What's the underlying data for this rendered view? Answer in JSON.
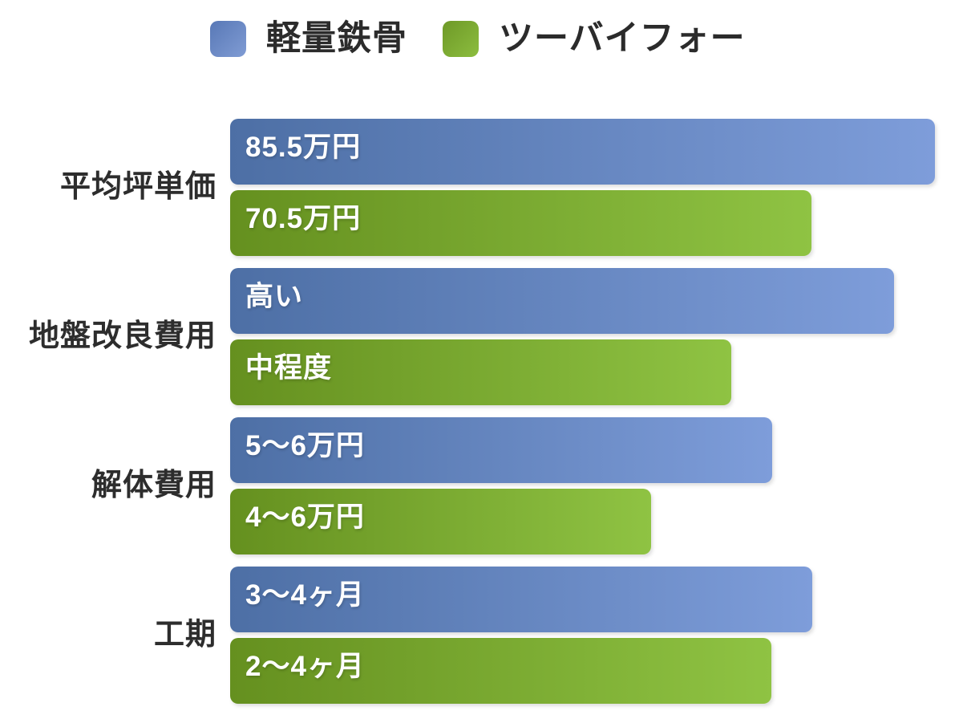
{
  "legend": {
    "items": [
      {
        "label": "軽量鉄骨",
        "color": "#6a8cc8",
        "gradient": [
          "#5878b6",
          "#809cd4"
        ]
      },
      {
        "label": "ツーバイフォー",
        "color": "#7fa936",
        "gradient": [
          "#6e9927",
          "#8cbd3f"
        ]
      }
    ]
  },
  "chart_data": {
    "type": "bar",
    "orientation": "horizontal",
    "title": "",
    "xlabel": "",
    "ylabel": "",
    "legend_position": "top",
    "grid": false,
    "categories": [
      "平均坪単価",
      "地盤改良費用",
      "解体費用",
      "工期"
    ],
    "series": [
      {
        "name": "軽量鉄骨",
        "color": "#5b7fc0",
        "gradient": [
          "#4d6fa5",
          "#7e9dda"
        ],
        "values": [
          "85.5万円",
          "高い",
          "5〜6万円",
          "3〜4ヶ月"
        ],
        "bar_lengths_pct": [
          100,
          94.2,
          76.9,
          82.6
        ]
      },
      {
        "name": "ツーバイフォー",
        "color": "#7ea937",
        "gradient": [
          "#65901f",
          "#8fc343"
        ],
        "values": [
          "70.5万円",
          "中程度",
          "4〜6万円",
          "2〜4ヶ月"
        ],
        "bar_lengths_pct": [
          82.5,
          71.1,
          59.7,
          76.8
        ]
      }
    ],
    "groups": [
      {
        "label": "平均坪単価",
        "bars": [
          {
            "series": "軽量鉄骨",
            "text": "85.5万円",
            "width_pct": 100
          },
          {
            "series": "ツーバイフォー",
            "text": "70.5万円",
            "width_pct": 82.5
          }
        ]
      },
      {
        "label": "地盤改良費用",
        "bars": [
          {
            "series": "軽量鉄骨",
            "text": "高い",
            "width_pct": 94.2
          },
          {
            "series": "ツーバイフォー",
            "text": "中程度",
            "width_pct": 71.1
          }
        ]
      },
      {
        "label": "解体費用",
        "bars": [
          {
            "series": "軽量鉄骨",
            "text": "5〜6万円",
            "width_pct": 76.9
          },
          {
            "series": "ツーバイフォー",
            "text": "4〜6万円",
            "width_pct": 59.7
          }
        ]
      },
      {
        "label": "工期",
        "bars": [
          {
            "series": "軽量鉄骨",
            "text": "3〜4ヶ月",
            "width_pct": 82.6
          },
          {
            "series": "ツーバイフォー",
            "text": "2〜4ヶ月",
            "width_pct": 76.8
          }
        ]
      }
    ]
  }
}
